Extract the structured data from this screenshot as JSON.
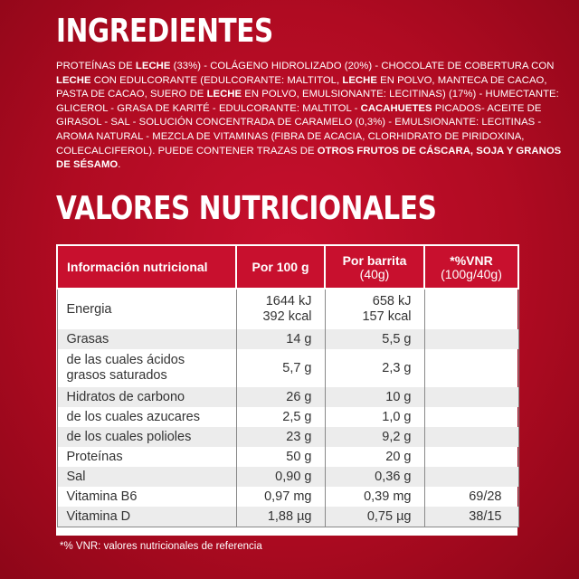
{
  "ingredients_heading": "INGREDIENTES",
  "ingredients": [
    {
      "text": "PROTEÍNAS DE ",
      "bold": false
    },
    {
      "text": "LECHE",
      "bold": true
    },
    {
      "text": " (33%) - COLÁGENO HIDROLIZADO (20%) - CHOCOLATE DE COBERTURA CON ",
      "bold": false
    },
    {
      "text": "LECHE",
      "bold": true
    },
    {
      "text": " CON EDULCORANTE (EDULCORANTE: MALTITOL, ",
      "bold": false
    },
    {
      "text": "LECHE",
      "bold": true
    },
    {
      "text": " EN POLVO, MANTECA DE CACAO, PASTA DE CACAO, SUERO DE ",
      "bold": false
    },
    {
      "text": "LECHE",
      "bold": true
    },
    {
      "text": " EN POLVO, EMULSIONANTE: LECITINAS) (17%) - HUMECTANTE: GLICEROL - GRASA DE KARITÉ - EDULCORANTE: MALTITOL - ",
      "bold": false
    },
    {
      "text": "CACAHUETES",
      "bold": true
    },
    {
      "text": " PICADOS- ACEITE DE GIRASOL - SAL - SOLUCIÓN CONCENTRADA DE CARAMELO (0,3%) - EMULSIONANTE: LECITINAS - AROMA NATURAL - MEZCLA DE VITAMINAS (FIBRA DE ACACIA, CLORHIDRATO DE PIRIDOXINA, COLECALCIFEROL). PUEDE CONTENER TRAZAS DE ",
      "bold": false
    },
    {
      "text": "OTROS FRUTOS DE CÁSCARA, SOJA Y GRANOS DE SÉSAMO",
      "bold": true
    },
    {
      "text": ".",
      "bold": false
    }
  ],
  "nutrition_heading": "VALORES NUTRICIONALES",
  "table": {
    "headers": {
      "col1": "Información nutricional",
      "col2": "Por 100 g",
      "col3_top": "Por barrita",
      "col3_sub": "(40g)",
      "col4_top": "*%VNR",
      "col4_sub": "(100g/40g)"
    },
    "rows": [
      {
        "name": [
          "Energia"
        ],
        "per100": [
          "1644 kJ",
          "392 kcal"
        ],
        "perBar": [
          "658 kJ",
          "157 kcal"
        ],
        "vnr": "",
        "shade": false,
        "cls": "r-energy"
      },
      {
        "name": [
          "Grasas"
        ],
        "per100": [
          "14 g"
        ],
        "perBar": [
          "5,5 g"
        ],
        "vnr": "",
        "shade": true,
        "cls": "std"
      },
      {
        "name": [
          "de las cuales ácidos",
          "grasos saturados"
        ],
        "per100": [
          "5,7 g"
        ],
        "perBar": [
          "2,3 g"
        ],
        "vnr": "",
        "shade": false,
        "cls": "r-sat"
      },
      {
        "name": [
          "Hidratos de carbono"
        ],
        "per100": [
          "26 g"
        ],
        "perBar": [
          "10 g"
        ],
        "vnr": "",
        "shade": true,
        "cls": "std"
      },
      {
        "name": [
          "de los cuales azucares"
        ],
        "per100": [
          "2,5 g"
        ],
        "perBar": [
          "1,0 g"
        ],
        "vnr": "",
        "shade": false,
        "cls": "std"
      },
      {
        "name": [
          "de los cuales polioles"
        ],
        "per100": [
          "23 g"
        ],
        "perBar": [
          "9,2 g"
        ],
        "vnr": "",
        "shade": true,
        "cls": "std"
      },
      {
        "name": [
          "Proteínas"
        ],
        "per100": [
          "50 g"
        ],
        "perBar": [
          "20 g"
        ],
        "vnr": "",
        "shade": false,
        "cls": "std"
      },
      {
        "name": [
          "Sal"
        ],
        "per100": [
          "0,90 g"
        ],
        "perBar": [
          "0,36 g"
        ],
        "vnr": "",
        "shade": true,
        "cls": "std"
      },
      {
        "name": [
          "Vitamina B6"
        ],
        "per100": [
          "0,97 mg"
        ],
        "perBar": [
          "0,39 mg"
        ],
        "vnr": "69/28",
        "shade": false,
        "cls": "std"
      },
      {
        "name": [
          "Vitamina D"
        ],
        "per100": [
          "1,88 µg"
        ],
        "perBar": [
          "0,75 µg"
        ],
        "vnr": "38/15",
        "shade": true,
        "cls": "std"
      }
    ]
  },
  "footnote": "*% VNR: valores nutricionales de referencia"
}
